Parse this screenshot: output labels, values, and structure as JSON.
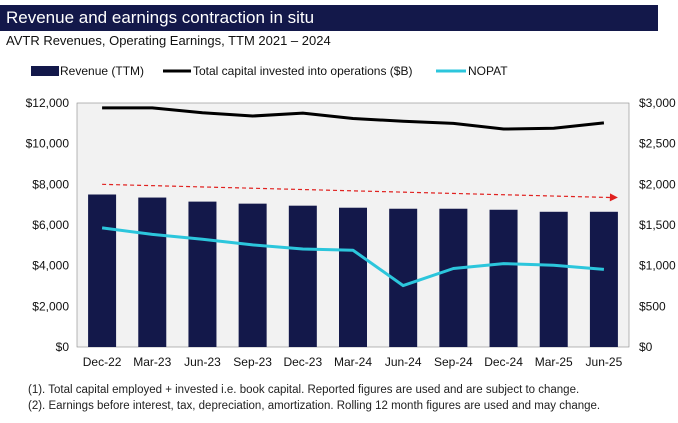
{
  "header": {
    "title": "Revenue and earnings contraction in situ",
    "subtitle": "AVTR Revenues, Operating Earnings, TTM 2021 – 2024"
  },
  "colors": {
    "title_bg": "#13184a",
    "bar": "#13184a",
    "capital_line": "#000000",
    "nopat_line": "#2cc6dc",
    "trend_arrow": "#e0211f",
    "plot_bg": "#f2f2f2"
  },
  "chart_data": {
    "type": "bar",
    "categories": [
      "Dec-22",
      "Mar-23",
      "Jun-23",
      "Sep-23",
      "Dec-23",
      "Mar-24",
      "Jun-24",
      "Sep-24",
      "Dec-24",
      "Mar-25",
      "Jun-25"
    ],
    "series": [
      {
        "name": "Revenue (TTM)",
        "type": "bar",
        "axis": "left",
        "values": [
          7500,
          7350,
          7150,
          7050,
          6950,
          6850,
          6800,
          6800,
          6750,
          6650,
          6650
        ]
      },
      {
        "name": "Total capital invested into operations ($B)",
        "type": "line",
        "axis": "right",
        "values": [
          2940,
          2940,
          2880,
          2840,
          2875,
          2810,
          2775,
          2750,
          2680,
          2690,
          2755
        ]
      },
      {
        "name": "NOPAT",
        "type": "line",
        "axis": "right",
        "values": [
          1465,
          1385,
          1325,
          1255,
          1205,
          1190,
          755,
          965,
          1025,
          1005,
          955
        ]
      }
    ],
    "y_left": {
      "range": [
        0,
        12000
      ],
      "ticks": [
        "$0",
        "$2,000",
        "$4,000",
        "$6,000",
        "$8,000",
        "$10,000",
        "$12,000"
      ]
    },
    "y_right": {
      "range": [
        0,
        3000
      ],
      "ticks": [
        "$0",
        "$500",
        "$1,000",
        "$1,500",
        "$2,000",
        "$2,500",
        "$3,000"
      ]
    },
    "trend_arrow": {
      "from_y_left": 8000,
      "to_y_left": 7350,
      "style": "dashed"
    },
    "grid": false,
    "legend": "top"
  },
  "notes": [
    "(1). Total capital employed + invested i.e. book capital. Reported figures are used and are subject to change.",
    "(2). Earnings before interest, tax, depreciation, amortization. Rolling 12 month figures are used and may change."
  ]
}
